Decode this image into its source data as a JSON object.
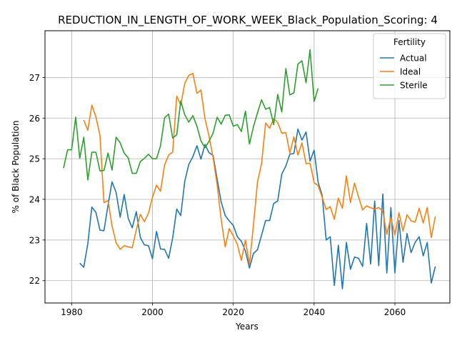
{
  "chart_data": {
    "type": "line",
    "title": "REDUCTION_IN_LENGTH_OF_WORK_WEEK_Black_Population_Scoring: 4",
    "xlabel": "Years",
    "ylabel": "% of Black Population",
    "xlim": [
      1973.4,
      2073.6
    ],
    "ylim": [
      21.45,
      28.15
    ],
    "xticks": [
      1980,
      2000,
      2020,
      2040,
      2060
    ],
    "yticks": [
      22,
      23,
      24,
      25,
      26,
      27
    ],
    "grid": true,
    "legend": {
      "title": "Fertility",
      "placement": "top-right"
    },
    "series": [
      {
        "name": "Actual",
        "color": "#1f77b4",
        "x": [
          1982,
          1983,
          1984,
          1985,
          1986,
          1987,
          1988,
          1989,
          1990,
          1991,
          1992,
          1993,
          1994,
          1995,
          1996,
          1997,
          1998,
          1999,
          2000,
          2001,
          2002,
          2003,
          2004,
          2005,
          2006,
          2007,
          2008,
          2009,
          2010,
          2011,
          2012,
          2013,
          2014,
          2015,
          2016,
          2017,
          2018,
          2019,
          2020,
          2021,
          2022,
          2023,
          2024,
          2025,
          2026,
          2027,
          2028,
          2029,
          2030,
          2031,
          2032,
          2033,
          2034,
          2035,
          2036,
          2037,
          2038,
          2039,
          2040,
          2041,
          2042,
          2043,
          2044,
          2045,
          2046,
          2047,
          2048,
          2049,
          2050,
          2051,
          2052,
          2053,
          2054,
          2055,
          2056,
          2057,
          2058,
          2059,
          2060,
          2061,
          2062,
          2063,
          2064,
          2065,
          2066,
          2067,
          2068,
          2069,
          2070
        ],
        "values": [
          22.43,
          22.33,
          22.91,
          23.81,
          23.68,
          23.24,
          23.23,
          23.86,
          24.43,
          24.17,
          23.56,
          24.12,
          23.53,
          23.3,
          23.7,
          23.06,
          22.88,
          22.86,
          22.54,
          23.21,
          22.78,
          22.77,
          22.55,
          23.05,
          23.76,
          23.6,
          24.45,
          24.86,
          25.05,
          25.32,
          24.99,
          25.35,
          25.15,
          25.08,
          24.5,
          23.94,
          23.6,
          23.47,
          23.36,
          23.08,
          22.97,
          22.73,
          22.31,
          22.67,
          22.76,
          23.12,
          23.48,
          23.48,
          23.9,
          23.96,
          24.62,
          24.82,
          25.11,
          25.13,
          25.73,
          25.46,
          25.66,
          24.94,
          25.21,
          24.42,
          24.1,
          23.0,
          23.08,
          21.88,
          22.87,
          21.8,
          22.94,
          22.28,
          22.58,
          22.55,
          22.35,
          23.41,
          22.41,
          23.96,
          22.37,
          24.13,
          22.19,
          23.8,
          22.19,
          23.48,
          22.45,
          23.16,
          22.69,
          22.94,
          23.08,
          22.61,
          22.94,
          21.94,
          22.35
        ]
      },
      {
        "name": "Ideal",
        "color": "#ff7f0e",
        "x": [
          1983,
          1984,
          1985,
          1986,
          1987,
          1988,
          1989,
          1990,
          1991,
          1992,
          1993,
          1994,
          1995,
          1996,
          1997,
          1998,
          1999,
          2000,
          2001,
          2002,
          2003,
          2004,
          2005,
          2006,
          2007,
          2008,
          2009,
          2010,
          2011,
          2012,
          2013,
          2014,
          2015,
          2016,
          2017,
          2018,
          2019,
          2020,
          2021,
          2022,
          2023,
          2024,
          2025,
          2026,
          2027,
          2028,
          2029,
          2030,
          2031,
          2032,
          2033,
          2034,
          2035,
          2036,
          2037,
          2038,
          2039,
          2040,
          2041,
          2042,
          2043,
          2044,
          2045,
          2046,
          2047,
          2048,
          2049,
          2050,
          2051,
          2052,
          2053,
          2054,
          2055,
          2056,
          2057,
          2058,
          2059,
          2060,
          2061,
          2062,
          2063,
          2064,
          2065,
          2066,
          2067,
          2068,
          2069,
          2070
        ],
        "values": [
          25.95,
          25.7,
          26.32,
          26.03,
          25.57,
          23.92,
          23.97,
          23.35,
          22.93,
          22.77,
          22.86,
          22.83,
          22.81,
          23.25,
          23.63,
          23.45,
          23.66,
          24.05,
          24.35,
          24.2,
          24.85,
          25.09,
          25.16,
          26.54,
          26.32,
          26.86,
          27.05,
          27.1,
          26.61,
          26.69,
          25.98,
          25.56,
          25.03,
          24.36,
          23.51,
          22.83,
          23.28,
          23.1,
          22.89,
          22.5,
          23.0,
          22.4,
          23.38,
          24.43,
          24.88,
          25.88,
          25.75,
          25.99,
          25.89,
          25.63,
          25.64,
          25.14,
          25.54,
          25.09,
          25.39,
          24.88,
          24.89,
          24.41,
          24.34,
          24.05,
          23.75,
          23.82,
          23.51,
          24.03,
          23.78,
          24.58,
          23.92,
          24.4,
          24.06,
          23.74,
          23.84,
          23.79,
          23.76,
          23.8,
          23.71,
          23.14,
          23.56,
          23.12,
          23.67,
          23.22,
          23.62,
          23.47,
          23.44,
          23.78,
          23.42,
          23.8,
          23.06,
          23.58
        ]
      },
      {
        "name": "Sterile",
        "color": "#2ca02c",
        "x": [
          1978,
          1979,
          1980,
          1981,
          1982,
          1983,
          1984,
          1985,
          1986,
          1987,
          1988,
          1989,
          1990,
          1991,
          1992,
          1993,
          1994,
          1995,
          1996,
          1997,
          1998,
          1999,
          2000,
          2001,
          2002,
          2003,
          2004,
          2005,
          2006,
          2007,
          2008,
          2009,
          2010,
          2011,
          2012,
          2013,
          2014,
          2015,
          2016,
          2017,
          2018,
          2019,
          2020,
          2021,
          2022,
          2023,
          2024,
          2025,
          2026,
          2027,
          2028,
          2029,
          2030,
          2031,
          2032,
          2033,
          2034,
          2035,
          2036,
          2037,
          2038,
          2039,
          2040,
          2041
        ],
        "values": [
          24.77,
          25.22,
          25.22,
          26.02,
          25.01,
          25.53,
          24.48,
          25.16,
          25.16,
          24.7,
          24.71,
          25.14,
          24.72,
          25.53,
          25.39,
          25.14,
          25.02,
          24.64,
          24.64,
          24.93,
          25.01,
          25.11,
          25.0,
          25.0,
          25.32,
          26.01,
          26.1,
          25.51,
          25.59,
          26.42,
          26.08,
          25.9,
          26.06,
          25.8,
          25.44,
          25.27,
          25.43,
          25.63,
          26.02,
          25.85,
          26.07,
          26.08,
          25.8,
          25.84,
          25.67,
          26.17,
          25.36,
          25.79,
          26.13,
          26.45,
          26.22,
          26.26,
          25.84,
          26.58,
          26.15,
          27.22,
          26.57,
          26.62,
          27.33,
          27.41,
          26.87,
          27.68,
          26.41,
          26.73
        ]
      }
    ]
  }
}
